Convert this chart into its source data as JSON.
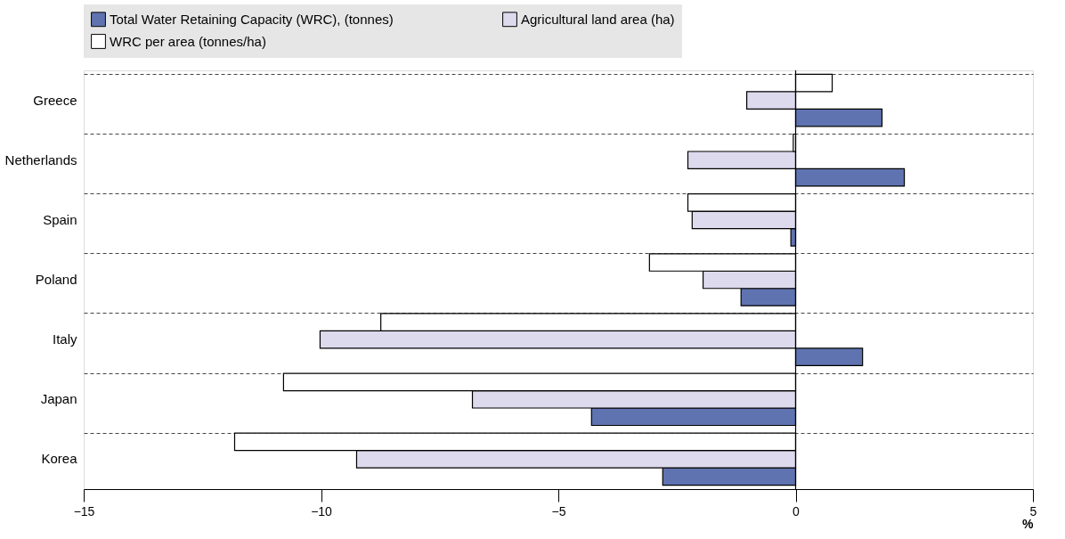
{
  "chart_data": {
    "type": "bar",
    "orientation": "horizontal",
    "categories": [
      "Greece",
      "Netherlands",
      "Spain",
      "Poland",
      "Italy",
      "Japan",
      "Korea"
    ],
    "series": [
      {
        "name": "Total Water Retaining Capacity (WRC), (tonnes)",
        "color": "#5f73b0",
        "values": [
          1.82,
          2.29,
          -0.1,
          -1.15,
          1.41,
          -4.3,
          -2.8
        ]
      },
      {
        "name": "Agricultural land area (ha)",
        "color": "#dcdaec",
        "values": [
          -1.03,
          -2.27,
          -2.18,
          -1.95,
          -10.02,
          -6.81,
          -9.25
        ]
      },
      {
        "name": "WRC per area (tonnes/ha)",
        "color": "#ffffff",
        "values": [
          0.77,
          -0.05,
          -2.27,
          -3.08,
          -8.74,
          -10.79,
          -11.82
        ]
      }
    ],
    "xlim": [
      -15,
      5
    ],
    "xticks": [
      -15,
      -10,
      -5,
      0,
      5
    ],
    "xlabel": "%",
    "grid": "y",
    "legend": "top"
  }
}
